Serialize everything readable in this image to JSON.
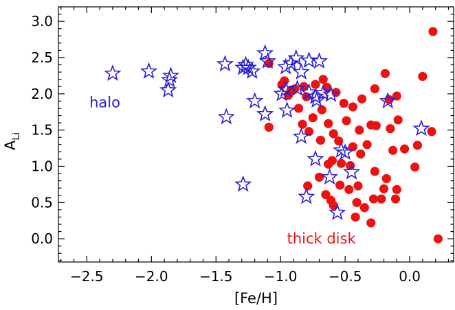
{
  "chart_data": {
    "type": "scatter",
    "title": "",
    "xlabel": "[Fe/H]",
    "ylabel_main": "A",
    "ylabel_sub": "Li",
    "xlim": [
      -2.72,
      0.34
    ],
    "ylim": [
      -0.32,
      3.2
    ],
    "xticks": [
      {
        "value": -2.5,
        "label": "−2.5"
      },
      {
        "value": -2.0,
        "label": "−2.0"
      },
      {
        "value": -1.5,
        "label": "−1.5"
      },
      {
        "value": -1.0,
        "label": "−1.0"
      },
      {
        "value": -0.5,
        "label": "−0.5"
      },
      {
        "value": 0.0,
        "label": "0.0"
      }
    ],
    "yticks": [
      {
        "value": 0.0,
        "label": "0.0"
      },
      {
        "value": 0.5,
        "label": "0.5"
      },
      {
        "value": 1.0,
        "label": "1.0"
      },
      {
        "value": 1.5,
        "label": "1.5"
      },
      {
        "value": 2.0,
        "label": "2.0"
      },
      {
        "value": 2.5,
        "label": "2.5"
      },
      {
        "value": 3.0,
        "label": "3.0"
      }
    ],
    "grid": false,
    "annotations": [
      {
        "text": "halo",
        "x": -2.48,
        "y": 1.88,
        "color": "#2a1fd0"
      },
      {
        "text": "thick disk",
        "x": -0.95,
        "y": 0.0,
        "color": "#ee1111"
      }
    ],
    "series": [
      {
        "marker": "star",
        "color": "#2a1fd0",
        "points": [
          [
            -2.3,
            2.28
          ],
          [
            -2.02,
            2.31
          ],
          [
            -1.85,
            2.25
          ],
          [
            -1.86,
            2.19
          ],
          [
            -1.87,
            2.05
          ],
          [
            -1.43,
            2.41
          ],
          [
            -1.42,
            1.68
          ],
          [
            -1.29,
            2.36
          ],
          [
            -1.27,
            2.4
          ],
          [
            -1.25,
            2.36
          ],
          [
            -1.22,
            2.31
          ],
          [
            -1.2,
            1.9
          ],
          [
            -1.12,
            2.56
          ],
          [
            -1.1,
            2.45
          ],
          [
            -1.12,
            1.72
          ],
          [
            -1.29,
            0.75
          ],
          [
            -0.96,
            2.37
          ],
          [
            -0.99,
            2.0
          ],
          [
            -0.96,
            2.06
          ],
          [
            -0.95,
            1.77
          ],
          [
            -0.92,
            2.42
          ],
          [
            -0.88,
            2.49
          ],
          [
            -0.87,
            2.07
          ],
          [
            -0.84,
            2.3
          ],
          [
            -0.84,
            1.41
          ],
          [
            -0.8,
            0.58
          ],
          [
            -0.78,
            2.46
          ],
          [
            -0.78,
            2.02
          ],
          [
            -0.73,
            1.96
          ],
          [
            -0.72,
            1.91
          ],
          [
            -0.73,
            1.1
          ],
          [
            -0.7,
            2.45
          ],
          [
            -0.67,
            2.01
          ],
          [
            -0.62,
            0.85
          ],
          [
            -0.61,
            1.99
          ],
          [
            -0.56,
            0.36
          ],
          [
            -0.53,
            1.22
          ],
          [
            -0.5,
            1.19
          ],
          [
            -0.45,
            0.92
          ],
          [
            -0.17,
            1.9
          ],
          [
            0.09,
            1.52
          ]
        ]
      },
      {
        "marker": "circle",
        "color": "#ee1111",
        "points": [
          [
            0.18,
            2.86
          ],
          [
            0.22,
            0.0
          ],
          [
            0.17,
            1.48
          ],
          [
            0.1,
            2.24
          ],
          [
            0.06,
            1.29
          ],
          [
            0.04,
            0.99
          ],
          [
            -0.04,
            1.24
          ],
          [
            -0.1,
            1.97
          ],
          [
            -0.09,
            1.64
          ],
          [
            -0.1,
            0.68
          ],
          [
            -0.11,
            0.55
          ],
          [
            -0.15,
            1.52
          ],
          [
            -0.13,
            1.22
          ],
          [
            -0.16,
            1.92
          ],
          [
            -0.19,
            2.28
          ],
          [
            -0.18,
            0.83
          ],
          [
            -0.2,
            0.69
          ],
          [
            -0.22,
            0.55
          ],
          [
            -0.27,
            2.07
          ],
          [
            -0.26,
            1.56
          ],
          [
            -0.27,
            0.93
          ],
          [
            -0.3,
            1.57
          ],
          [
            -0.28,
            0.55
          ],
          [
            -0.3,
            0.22
          ],
          [
            -0.33,
            1.3
          ],
          [
            -0.35,
            0.43
          ],
          [
            -0.37,
            1.93
          ],
          [
            -0.39,
            1.5
          ],
          [
            -0.38,
            1.17
          ],
          [
            -0.4,
            0.73
          ],
          [
            -0.41,
            0.5
          ],
          [
            -0.42,
            0.3
          ],
          [
            -0.44,
            1.82
          ],
          [
            -0.44,
            1.27
          ],
          [
            -0.46,
            1.01
          ],
          [
            -0.47,
            0.68
          ],
          [
            -0.49,
            1.63
          ],
          [
            -0.51,
            1.87
          ],
          [
            -0.53,
            1.04
          ],
          [
            -0.54,
            0.74
          ],
          [
            -0.55,
            1.35
          ],
          [
            -0.57,
            2.02
          ],
          [
            -0.59,
            1.45
          ],
          [
            -0.6,
            1.08
          ],
          [
            -0.61,
            0.53
          ],
          [
            -0.64,
            2.09
          ],
          [
            -0.63,
            1.59
          ],
          [
            -0.63,
            1.03
          ],
          [
            -0.65,
            0.61
          ],
          [
            -0.67,
            2.2
          ],
          [
            -0.68,
            1.78
          ],
          [
            -0.69,
            1.36
          ],
          [
            -0.7,
            0.85
          ],
          [
            -0.73,
            2.13
          ],
          [
            -0.75,
            1.67
          ],
          [
            -0.78,
            1.48
          ],
          [
            -0.79,
            0.73
          ],
          [
            -0.8,
            1.96
          ],
          [
            -0.82,
            2.1
          ],
          [
            -0.83,
            1.58
          ],
          [
            -0.86,
            1.8
          ],
          [
            -0.89,
            2.07
          ],
          [
            -0.92,
            2.05
          ],
          [
            -0.94,
            1.98
          ],
          [
            -0.97,
            2.18
          ],
          [
            -0.99,
            2.13
          ],
          [
            -1.09,
            2.42
          ],
          [
            -1.09,
            1.54
          ],
          [
            -0.59,
            0.46
          ]
        ]
      }
    ]
  }
}
